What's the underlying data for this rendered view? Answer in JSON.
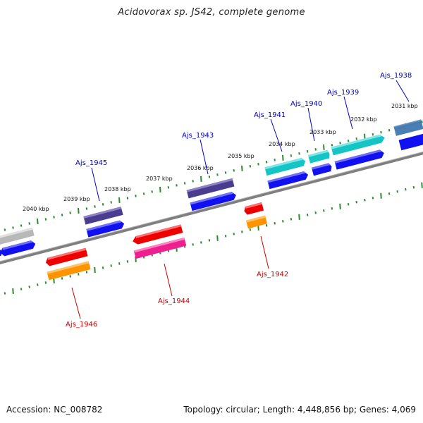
{
  "title": "Acidovorax sp. JS42, complete genome",
  "footer": {
    "accession": "Accession: NC_008782",
    "summary": "Topology: circular; Length: 4,448,856 bp; Genes: 4,069"
  },
  "colors": {
    "backbone": "#808080",
    "tick": "#2e8b2e",
    "label_forward": "#0000cc",
    "label_reverse": "#cc0000",
    "gene_blue": "#1010f0",
    "gene_navy": "#4a3d8f",
    "gene_cyan": "#15c4c4",
    "gene_steel": "#4a7fb5",
    "gene_gray": "#b8b8b8",
    "gene_red": "#ee0000",
    "gene_orange": "#ff9400",
    "gene_pink": "#ee2090"
  },
  "scale_labels": [
    "2031 kbp",
    "2032 kbp",
    "2033 kbp",
    "2034 kbp",
    "2035 kbp",
    "2036 kbp",
    "2037 kbp",
    "2038 kbp",
    "2039 kbp",
    "2040 kbp"
  ],
  "gene_labels": [
    {
      "text": "Ajs_1938",
      "strand": "forward"
    },
    {
      "text": "Ajs_1939",
      "strand": "forward"
    },
    {
      "text": "Ajs_1940",
      "strand": "forward"
    },
    {
      "text": "Ajs_1941",
      "strand": "forward"
    },
    {
      "text": "Ajs_1943",
      "strand": "forward"
    },
    {
      "text": "Ajs_1945",
      "strand": "forward"
    },
    {
      "text": "Ajs_1942",
      "strand": "reverse"
    },
    {
      "text": "Ajs_1944",
      "strand": "reverse"
    },
    {
      "text": "Ajs_1946",
      "strand": "reverse"
    }
  ]
}
